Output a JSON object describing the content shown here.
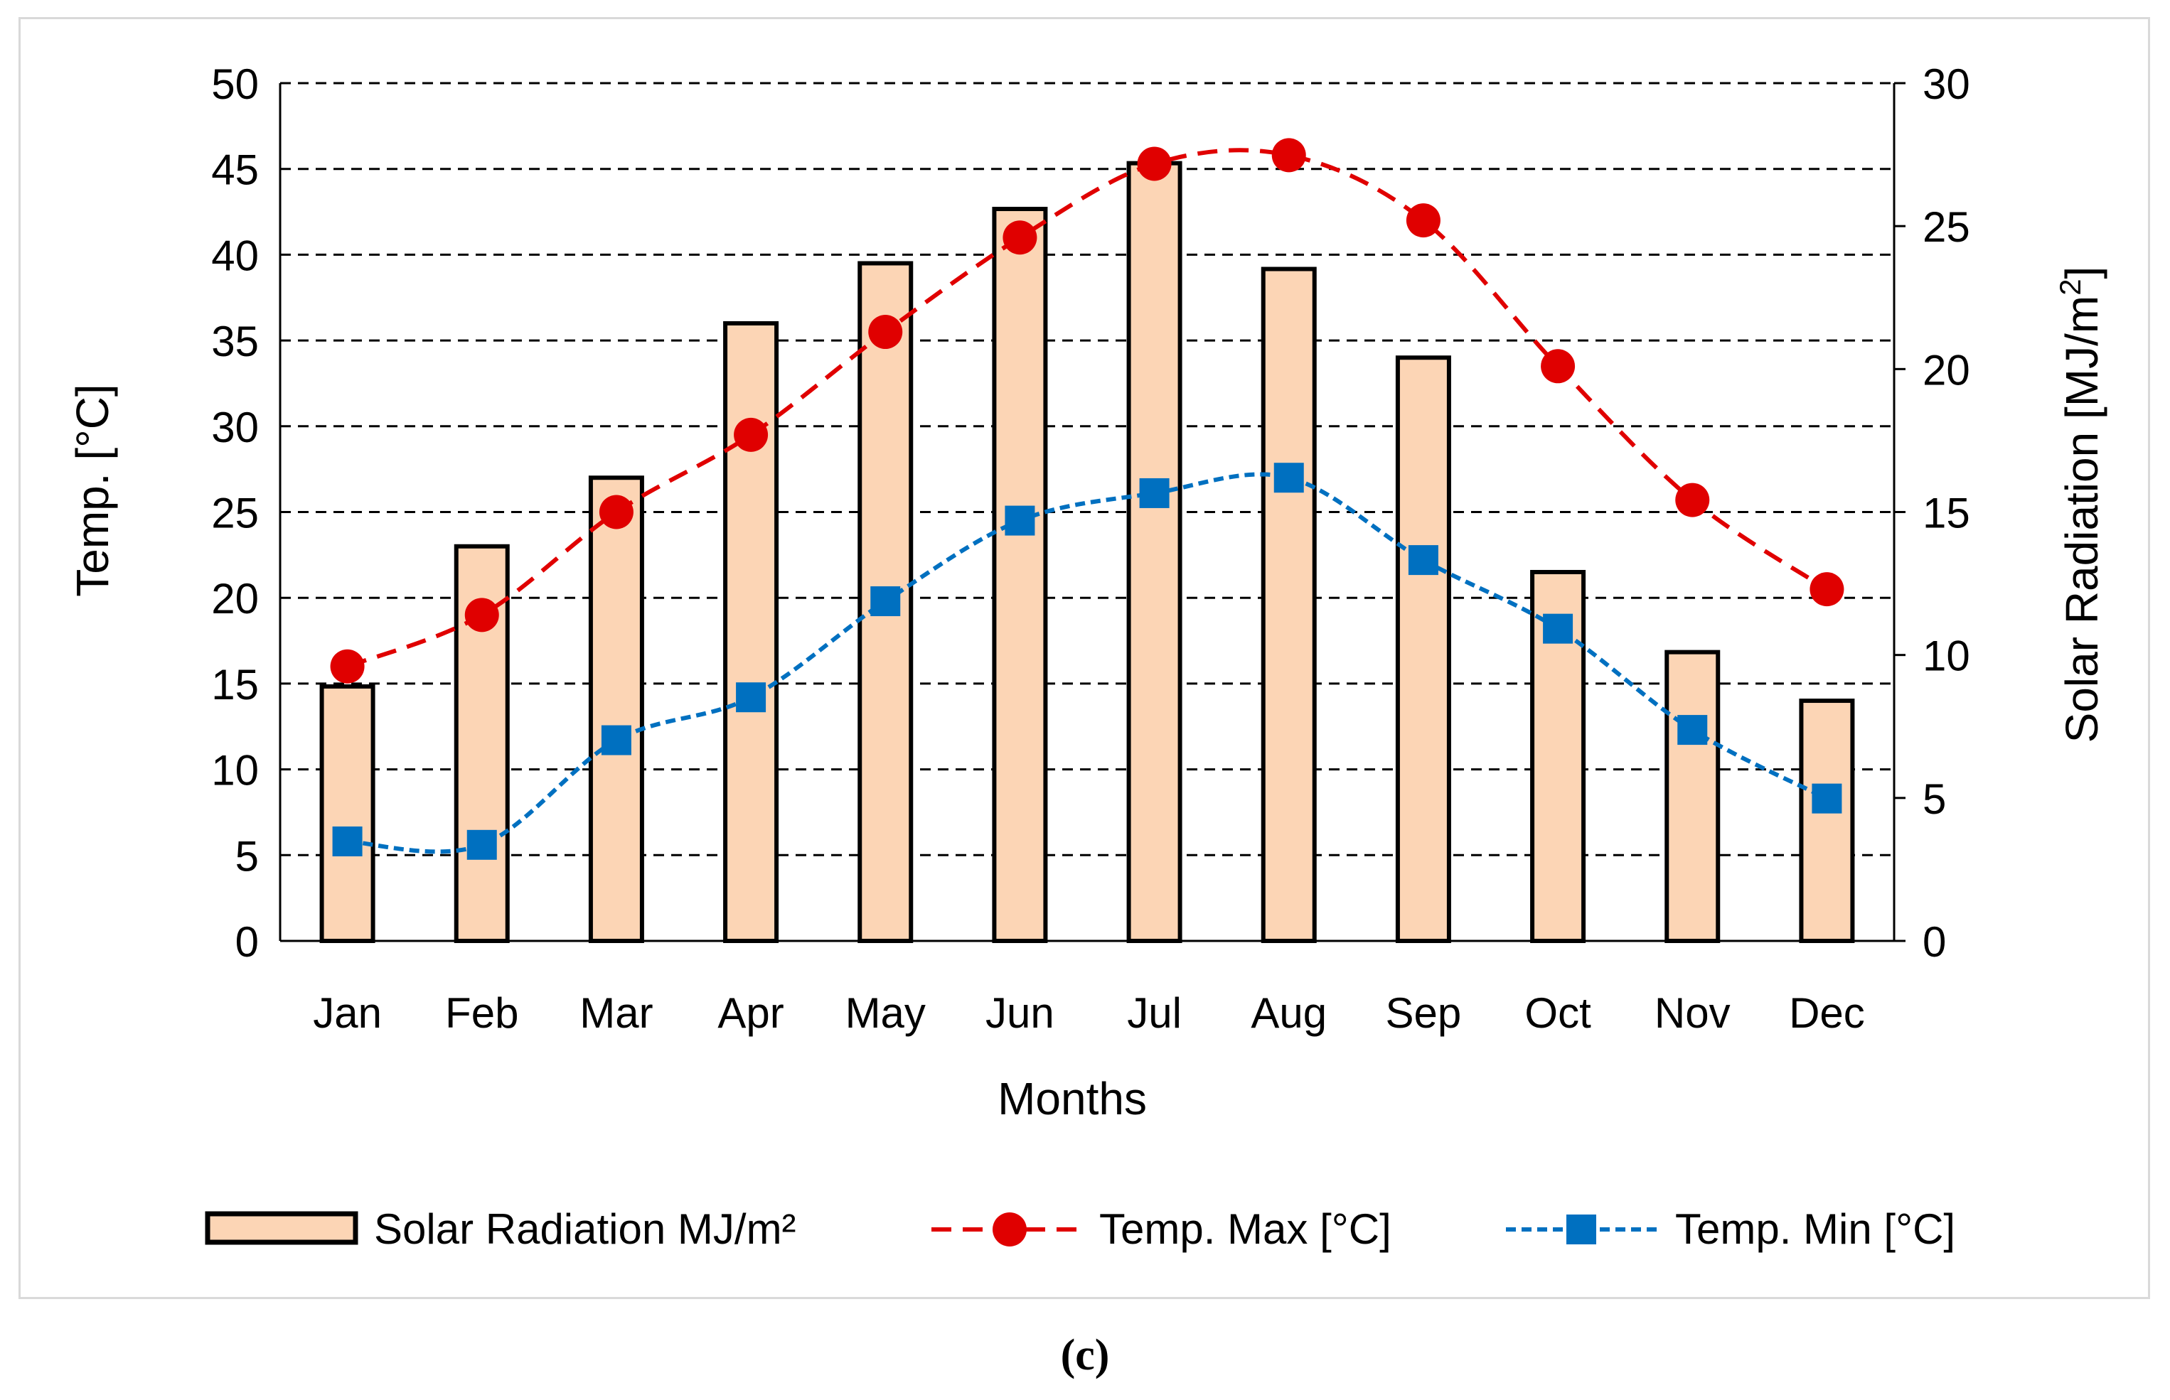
{
  "chart_data": {
    "type": "bar",
    "title": "",
    "xlabel": "Months",
    "ylabel": "Temp. [°C]",
    "y2label": "Solar Radiation [MJ/m",
    "y2label_sup": "2",
    "y2label_end": "]",
    "ylim": [
      0,
      50
    ],
    "y2lim": [
      0,
      30
    ],
    "yticks": [
      0,
      5,
      10,
      15,
      20,
      25,
      30,
      35,
      40,
      45,
      50
    ],
    "y2ticks": [
      0,
      5,
      10,
      15,
      20,
      25,
      30
    ],
    "grid": true,
    "legend_position": "bottom",
    "categories": [
      "Jan",
      "Feb",
      "Mar",
      "Apr",
      "May",
      "Jun",
      "Jul",
      "Aug",
      "Sep",
      "Oct",
      "Nov",
      "Dec"
    ],
    "series": [
      {
        "name": "Solar Radiation MJ/m²",
        "kind": "bar",
        "axis": "right",
        "color": "#fcd5b5",
        "edge_color": "#000000",
        "values": [
          8.9,
          13.8,
          16.2,
          21.6,
          23.7,
          25.6,
          27.2,
          23.5,
          20.4,
          12.9,
          10.1,
          8.4
        ]
      },
      {
        "name": "Temp. Max [°C]",
        "kind": "line",
        "axis": "left",
        "color": "#e00000",
        "marker": "circle",
        "values": [
          16.0,
          19.0,
          25.0,
          29.5,
          35.5,
          41.0,
          45.3,
          45.8,
          42.0,
          33.5,
          25.7,
          20.5
        ]
      },
      {
        "name": "Temp. Min [°C]",
        "kind": "line",
        "axis": "left",
        "color": "#0070c0",
        "marker": "square",
        "values": [
          5.8,
          5.6,
          11.7,
          14.2,
          19.8,
          24.5,
          26.1,
          27.0,
          22.2,
          18.2,
          12.3,
          8.3
        ]
      }
    ]
  },
  "caption": "(c)"
}
